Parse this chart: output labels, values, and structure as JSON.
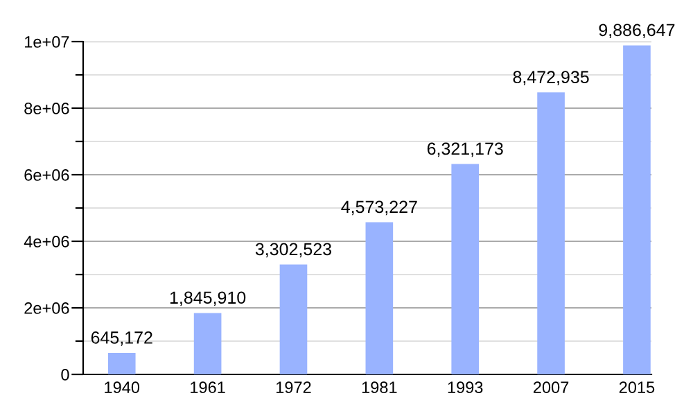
{
  "chart_data": {
    "type": "bar",
    "categories": [
      "1940",
      "1961",
      "1972",
      "1981",
      "1993",
      "2007",
      "2015"
    ],
    "values": [
      645172,
      1845910,
      3302523,
      4573227,
      6321173,
      8472935,
      9886647
    ],
    "value_labels": [
      "645,172",
      "1,845,910",
      "3,302,523",
      "4,573,227",
      "6,321,173",
      "8,472,935",
      "9,886,647"
    ],
    "color": "#99b3ff",
    "ylim": [
      0,
      10000000
    ],
    "yticks": [
      {
        "value": 0,
        "label": "0"
      },
      {
        "value": 1000000,
        "label": null
      },
      {
        "value": 2000000,
        "label": "2e+06"
      },
      {
        "value": 3000000,
        "label": null
      },
      {
        "value": 4000000,
        "label": "4e+06"
      },
      {
        "value": 5000000,
        "label": null
      },
      {
        "value": 6000000,
        "label": "6e+06"
      },
      {
        "value": 7000000,
        "label": null
      },
      {
        "value": 8000000,
        "label": "8e+06"
      },
      {
        "value": 9000000,
        "label": null
      },
      {
        "value": 10000000,
        "label": "1e+07"
      }
    ],
    "grid": "y"
  }
}
